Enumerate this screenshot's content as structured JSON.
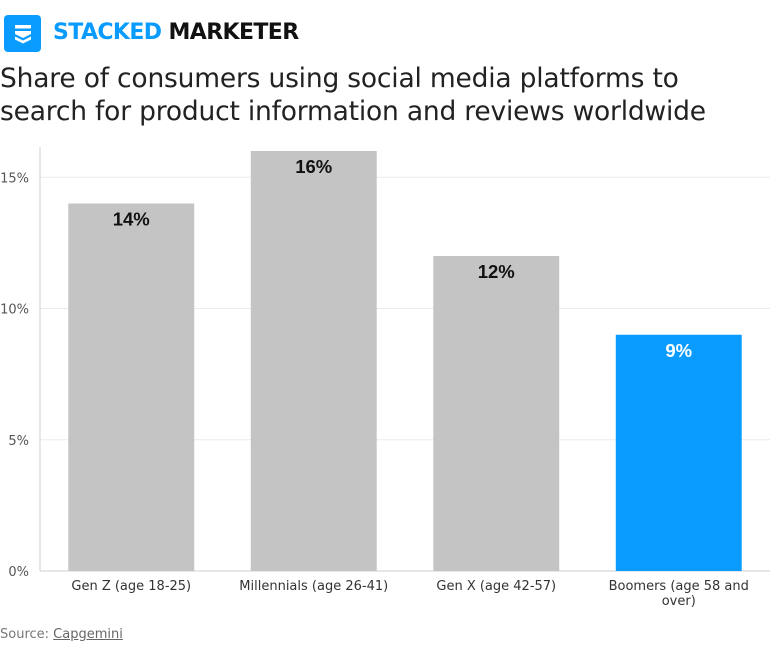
{
  "brand": {
    "part1": "STACKED",
    "part2": "MARKETER",
    "icon": "stacked-layers-icon",
    "accent_color": "#0a9bff"
  },
  "colors": {
    "default_bar": "#c4c4c4",
    "highlight_bar": "#0a9bff",
    "grid": "#ebebeb",
    "axis": "#cfcfcf"
  },
  "source": {
    "prefix": "Source: ",
    "link_text": "Capgemini"
  },
  "chart_data": {
    "type": "bar",
    "title": "Share of consumers using social media platforms to search for product information and reviews worldwide",
    "categories": [
      "Gen Z (age 18-25)",
      "Millennials (age 26-41)",
      "Gen X (age 42-57)",
      "Boomers (age 58 and over)"
    ],
    "values": [
      14,
      16,
      12,
      9
    ],
    "data_labels": [
      "14%",
      "16%",
      "12%",
      "9%"
    ],
    "highlight_index": 3,
    "ylim": [
      0,
      16
    ],
    "yticks": [
      0,
      5,
      10,
      15
    ],
    "ytick_labels": [
      "0%",
      "5%",
      "10%",
      "15%"
    ],
    "xlabel": "",
    "ylabel": "",
    "grid": true,
    "legend": "none"
  }
}
